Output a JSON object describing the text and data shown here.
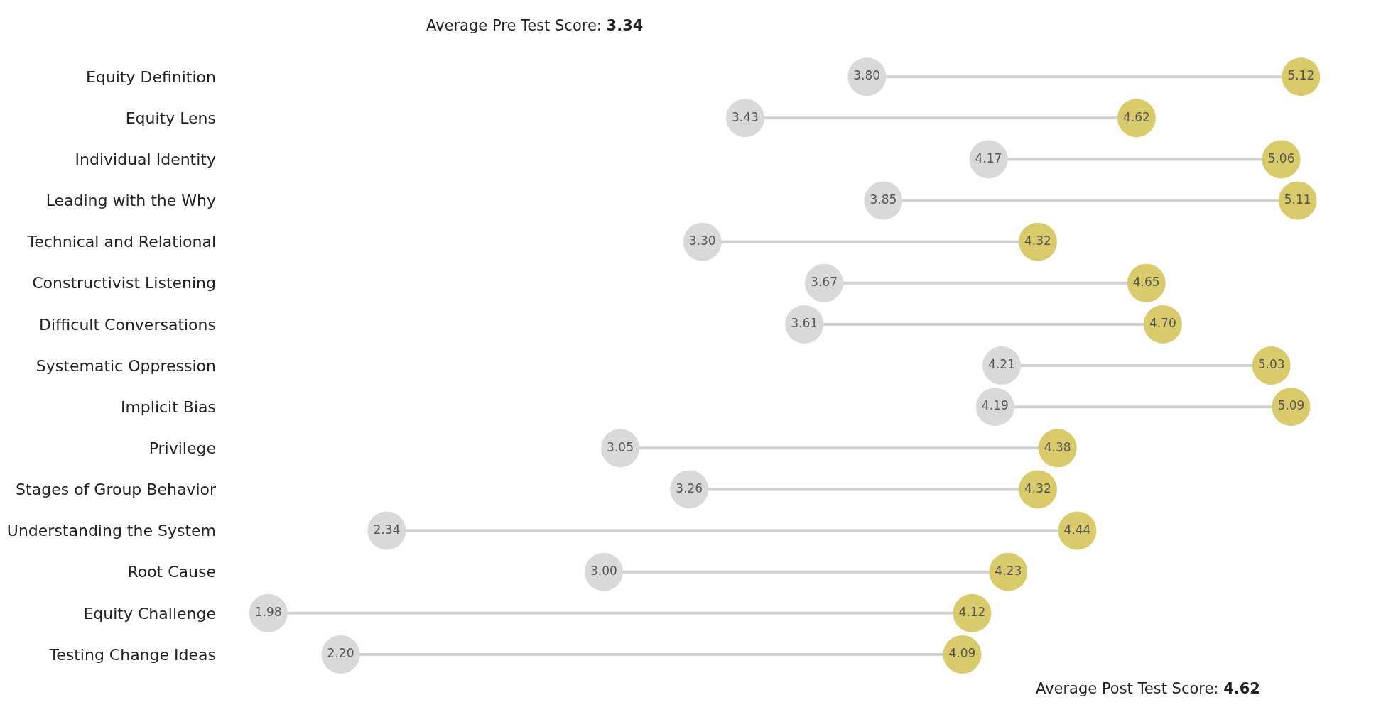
{
  "chart_data": {
    "type": "scatter",
    "orientation": "horizontal",
    "categories": [
      "Equity Definition",
      "Equity Lens",
      "Individual Identity",
      "Leading with the Why",
      "Technical and Relational",
      "Constructivist Listening",
      "Difficult Conversations",
      "Systematic Oppression",
      "Implicit Bias",
      "Privilege",
      "Stages of Group Behavior",
      "Understanding the System",
      "Root Cause",
      "Equity Challenge",
      "Testing Change Ideas"
    ],
    "series": [
      {
        "color": "#d9d9d9",
        "values": [
          3.8,
          3.43,
          4.17,
          3.85,
          3.3,
          3.67,
          3.61,
          4.21,
          4.19,
          3.05,
          3.26,
          2.34,
          3.0,
          1.98,
          2.2
        ],
        "value_labels": [
          "3.80",
          "3.43",
          "4.17",
          "3.85",
          "3.30",
          "3.67",
          "3.61",
          "4.21",
          "4.19",
          "3.05",
          "3.26",
          "2.34",
          "3.00",
          "1.98",
          "2.20"
        ]
      },
      {
        "color": "#d9cb6b",
        "values": [
          5.12,
          4.62,
          5.06,
          5.11,
          4.32,
          4.65,
          4.7,
          5.03,
          5.09,
          4.38,
          4.32,
          4.44,
          4.23,
          4.12,
          4.09
        ],
        "value_labels": [
          "5.12",
          "4.62",
          "5.06",
          "5.11",
          "4.32",
          "4.65",
          "4.70",
          "5.03",
          "5.09",
          "4.38",
          "4.32",
          "4.44",
          "4.23",
          "4.12",
          "4.09"
        ]
      }
    ],
    "annotations": [
      "Average Pre Test Score: 3.34",
      "Average Post Test Score: 4.62"
    ],
    "marker": "circle",
    "grid": false,
    "tick_labels": "y"
  }
}
